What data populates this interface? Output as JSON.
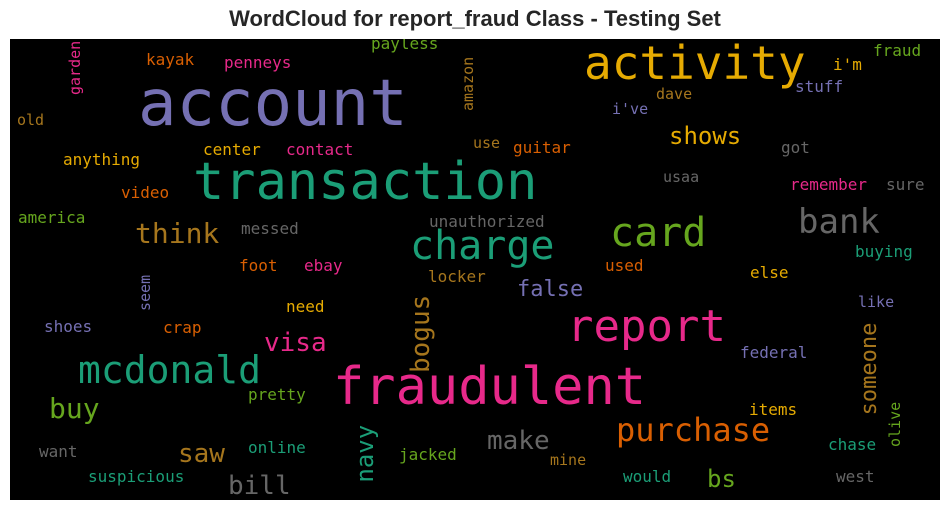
{
  "title": "WordCloud for report_fraud Class - Testing Set",
  "colors": {
    "background": "#000000",
    "purple": "#7570b3",
    "green": "#1b9e77",
    "pink": "#e7298a",
    "orange": "#d95f02",
    "gold": "#e6ab02",
    "olive": "#66a61e",
    "brown": "#a6761d",
    "gray": "#666666"
  },
  "words": [
    {
      "text": "account",
      "color": "#7570b3"
    },
    {
      "text": "activity",
      "color": "#e6ab02"
    },
    {
      "text": "transaction",
      "color": "#1b9e77"
    },
    {
      "text": "fraudulent",
      "color": "#e7298a"
    },
    {
      "text": "report",
      "color": "#e7298a"
    },
    {
      "text": "charge",
      "color": "#1b9e77"
    },
    {
      "text": "card",
      "color": "#66a61e"
    },
    {
      "text": "mcdonald",
      "color": "#1b9e77"
    },
    {
      "text": "bank",
      "color": "#666666"
    },
    {
      "text": "purchase",
      "color": "#d95f02"
    },
    {
      "text": "think",
      "color": "#a6761d"
    },
    {
      "text": "shows",
      "color": "#e6ab02"
    },
    {
      "text": "buy",
      "color": "#66a61e"
    },
    {
      "text": "bogus",
      "color": "#a6761d"
    },
    {
      "text": "false",
      "color": "#7570b3"
    },
    {
      "text": "visa",
      "color": "#e7298a"
    },
    {
      "text": "navy",
      "color": "#1b9e77"
    },
    {
      "text": "someone",
      "color": "#a6761d"
    },
    {
      "text": "make",
      "color": "#666666"
    },
    {
      "text": "saw",
      "color": "#a6761d"
    },
    {
      "text": "bill",
      "color": "#666666"
    },
    {
      "text": "bs",
      "color": "#66a61e"
    },
    {
      "text": "kayak",
      "color": "#d95f02"
    },
    {
      "text": "penneys",
      "color": "#e7298a"
    },
    {
      "text": "payless",
      "color": "#66a61e"
    },
    {
      "text": "garden",
      "color": "#e7298a"
    },
    {
      "text": "old",
      "color": "#a6761d"
    },
    {
      "text": "amazon",
      "color": "#a6761d"
    },
    {
      "text": "i'm",
      "color": "#e6ab02"
    },
    {
      "text": "fraud",
      "color": "#66a61e"
    },
    {
      "text": "stuff",
      "color": "#7570b3"
    },
    {
      "text": "dave",
      "color": "#a6761d"
    },
    {
      "text": "i've",
      "color": "#7570b3"
    },
    {
      "text": "anything",
      "color": "#e6ab02"
    },
    {
      "text": "center",
      "color": "#e6ab02"
    },
    {
      "text": "contact",
      "color": "#e7298a"
    },
    {
      "text": "use",
      "color": "#a6761d"
    },
    {
      "text": "guitar",
      "color": "#d95f02"
    },
    {
      "text": "got",
      "color": "#666666"
    },
    {
      "text": "video",
      "color": "#d95f02"
    },
    {
      "text": "usaa",
      "color": "#666666"
    },
    {
      "text": "remember",
      "color": "#e7298a"
    },
    {
      "text": "sure",
      "color": "#666666"
    },
    {
      "text": "america",
      "color": "#66a61e"
    },
    {
      "text": "messed",
      "color": "#666666"
    },
    {
      "text": "unauthorized",
      "color": "#666666"
    },
    {
      "text": "buying",
      "color": "#1b9e77"
    },
    {
      "text": "foot",
      "color": "#d95f02"
    },
    {
      "text": "ebay",
      "color": "#e7298a"
    },
    {
      "text": "locker",
      "color": "#a6761d"
    },
    {
      "text": "used",
      "color": "#d95f02"
    },
    {
      "text": "else",
      "color": "#e6ab02"
    },
    {
      "text": "seem",
      "color": "#7570b3"
    },
    {
      "text": "need",
      "color": "#e6ab02"
    },
    {
      "text": "like",
      "color": "#7570b3"
    },
    {
      "text": "shoes",
      "color": "#7570b3"
    },
    {
      "text": "crap",
      "color": "#d95f02"
    },
    {
      "text": "federal",
      "color": "#7570b3"
    },
    {
      "text": "pretty",
      "color": "#66a61e"
    },
    {
      "text": "items",
      "color": "#e6ab02"
    },
    {
      "text": "olive",
      "color": "#66a61e"
    },
    {
      "text": "want",
      "color": "#666666"
    },
    {
      "text": "online",
      "color": "#1b9e77"
    },
    {
      "text": "chase",
      "color": "#1b9e77"
    },
    {
      "text": "jacked",
      "color": "#66a61e"
    },
    {
      "text": "mine",
      "color": "#a6761d"
    },
    {
      "text": "suspicious",
      "color": "#1b9e77"
    },
    {
      "text": "would",
      "color": "#1b9e77"
    },
    {
      "text": "west",
      "color": "#666666"
    }
  ]
}
